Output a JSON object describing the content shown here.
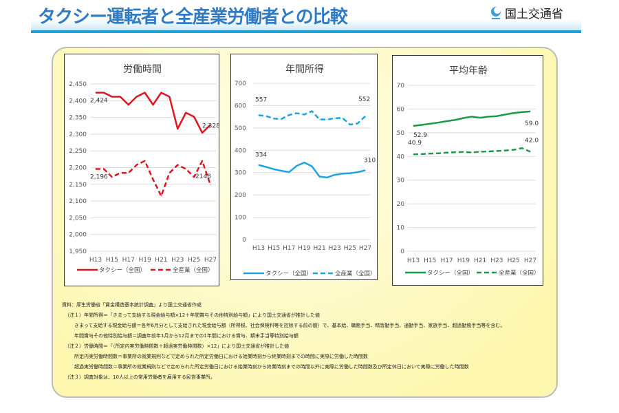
{
  "header": {
    "title": "タクシー運転者と全産業労働者との比較",
    "logo_text": "国土交通省"
  },
  "chart_data": [
    {
      "type": "line",
      "title": "労働時間",
      "categories": [
        "H13",
        "H14",
        "H15",
        "H16",
        "H17",
        "H18",
        "H19",
        "H20",
        "H21",
        "H22",
        "H23",
        "H24",
        "H25",
        "H26",
        "H27"
      ],
      "xtick_labels": [
        "H13",
        "H15",
        "H17",
        "H19",
        "H21",
        "H23",
        "H25",
        "H27"
      ],
      "ylim": [
        1950,
        2450
      ],
      "yticks": [
        1950,
        2000,
        2050,
        2100,
        2150,
        2200,
        2250,
        2300,
        2350,
        2400,
        2450
      ],
      "ytick_labels": [
        "1,950",
        "2,000",
        "2,050",
        "2,100",
        "2,150",
        "2,200",
        "2,250",
        "2,300",
        "2,350",
        "2,400",
        "2,450"
      ],
      "grid": true,
      "legend": "bottom",
      "color": "#e0141e",
      "series": [
        {
          "name": "タクシー（全国）",
          "style": "solid",
          "values": [
            2424,
            2424,
            2412,
            2412,
            2388,
            2412,
            2424,
            2388,
            2424,
            2412,
            2316,
            2364,
            2352,
            2304,
            2328
          ],
          "first_label": "2,424",
          "last_label": "2,328"
        },
        {
          "name": "全産業（全国）",
          "style": "dashed",
          "values": [
            2196,
            2196,
            2172,
            2184,
            2184,
            2208,
            2220,
            2165,
            2115,
            2184,
            2208,
            2196,
            2172,
            2220,
            2148
          ],
          "first_label": "2,196",
          "last_label": "2148"
        }
      ]
    },
    {
      "type": "line",
      "title": "年間所得",
      "categories": [
        "H13",
        "H14",
        "H15",
        "H16",
        "H17",
        "H18",
        "H19",
        "H20",
        "H21",
        "H22",
        "H23",
        "H24",
        "H25",
        "H26",
        "H27"
      ],
      "xtick_labels": [
        "H13",
        "H15",
        "H17",
        "H19",
        "H21",
        "H23",
        "H25",
        "H27"
      ],
      "ylim": [
        0,
        700
      ],
      "yticks": [
        0,
        100,
        200,
        300,
        400,
        500,
        600,
        700
      ],
      "ytick_labels": [
        "0",
        "100",
        "200",
        "300",
        "400",
        "500",
        "600",
        "700"
      ],
      "grid": true,
      "legend": "bottom",
      "color": "#1ca3e0",
      "series": [
        {
          "name": "タクシー（全国）",
          "style": "solid",
          "values": [
            334,
            325,
            315,
            308,
            302,
            330,
            345,
            328,
            282,
            278,
            290,
            295,
            297,
            302,
            310
          ],
          "first_label": "334",
          "last_label": "310"
        },
        {
          "name": "全産業（全国）",
          "style": "dashed",
          "values": [
            557,
            553,
            542,
            540,
            558,
            566,
            560,
            575,
            538,
            538,
            543,
            545,
            515,
            520,
            552
          ],
          "first_label": "557",
          "last_label": "552"
        }
      ]
    },
    {
      "type": "line",
      "title": "平均年齢",
      "categories": [
        "H13",
        "H14",
        "H15",
        "H16",
        "H17",
        "H18",
        "H19",
        "H20",
        "H21",
        "H22",
        "H23",
        "H24",
        "H25",
        "H26",
        "H27"
      ],
      "xtick_labels": [
        "H13",
        "H15",
        "H17",
        "H19",
        "H21",
        "H23",
        "H25",
        "H27"
      ],
      "ylim": [
        0,
        70
      ],
      "yticks": [
        0,
        10,
        20,
        30,
        40,
        50,
        60,
        70
      ],
      "ytick_labels": [
        "0",
        "10",
        "20",
        "30",
        "40",
        "50",
        "60",
        "70"
      ],
      "grid": true,
      "legend": "bottom",
      "color": "#1a9a48",
      "series": [
        {
          "name": "タクシー（全国）",
          "style": "solid",
          "values": [
            52.9,
            53.3,
            53.8,
            54.3,
            54.9,
            55.4,
            56.2,
            56.8,
            56.3,
            56.8,
            57.0,
            57.7,
            58.3,
            58.7,
            59.0
          ],
          "first_label": "52.9",
          "last_label": "59.0"
        },
        {
          "name": "全産業（全国）",
          "style": "dashed",
          "values": [
            40.9,
            41.0,
            41.2,
            41.3,
            41.6,
            41.8,
            41.9,
            41.7,
            42.0,
            42.1,
            42.3,
            42.5,
            42.8,
            43.5,
            42.0
          ],
          "first_label": "40.9",
          "last_label": "42.0"
        }
      ]
    }
  ],
  "notes": [
    "資料：厚生労働省「賃金構造基本統計調査」より国土交通省作成",
    "（注１）年間所得＝「きまって支給する現金給与額×12＋年間賞与その他特別給与額」により国土交通省が推計した値",
    "きまって支給する現金給与額＝各年6月分として支給された現金給与額（所得税、社会保険料等を控除する前の額）で、基本給、職務手当、精皆勤手当、通勤手当、家族手当、超過勤務手当等を含む。",
    "年間賞与その他特別給与額＝調査年前年1月から12月までの1年間における賞与、期末手当等特別給与額",
    "（注２）労働時間＝「（所定内実労働時間数＋超過実労働時間数）×12」により国土交通省が推計した値",
    "所定内実労働時間数＝事業所の就業規則などで定められた所定労働日における始業時刻から終業時刻までの時間に実際に労働した時間数",
    "超過実労働時間数＝事業所の就業規則などで定められた所定労働日における始業時刻から終業時刻までの時間以外に実際に労働した時間数及び所定休日において実際に労働した時間数",
    "（注３）調査対象は、10人以上の常用労働者を雇用する民営事業所。"
  ]
}
